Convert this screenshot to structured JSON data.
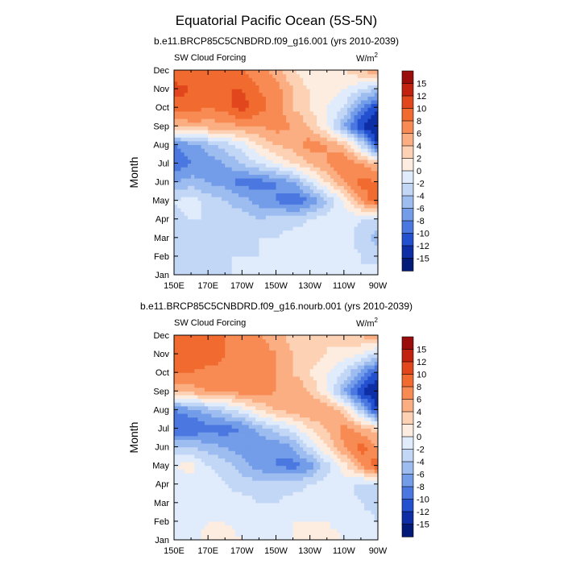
{
  "figure": {
    "title": "Equatorial Pacific Ocean (5S-5N)"
  },
  "chart_data": [
    {
      "type": "heatmap",
      "title": "b.e11.BRCP85C5CNBDRD.f09_g16.001 (yrs 2010-2039)",
      "subtitle_left": "SW Cloud Forcing",
      "units_base": "W/m",
      "units_exp": "2",
      "xlabel": "",
      "ylabel": "Month",
      "x_ticks": [
        "150E",
        "170E",
        "170W",
        "150W",
        "130W",
        "110W",
        "90W"
      ],
      "y_ticks": [
        "Jan",
        "Feb",
        "Mar",
        "Apr",
        "May",
        "Jun",
        "Jul",
        "Aug",
        "Sep",
        "Oct",
        "Nov",
        "Dec"
      ],
      "xlim": [
        150,
        270
      ],
      "ylim": [
        1,
        12
      ],
      "colorbar_labels": [
        "15",
        "12",
        "10",
        "8",
        "6",
        "4",
        "2",
        "0",
        "-2",
        "-4",
        "-6",
        "-8",
        "-10",
        "-12",
        "-15"
      ],
      "colorbar_colors": [
        "#9a0d0b",
        "#c3210f",
        "#e2461d",
        "#f16a2f",
        "#f88b54",
        "#fbae82",
        "#fdd1b4",
        "#fdece0",
        "#e0ecfb",
        "#c2d6f6",
        "#9dbcf0",
        "#739de9",
        "#4b78e0",
        "#2350cf",
        "#0e2ea6",
        "#031a78"
      ],
      "z": [
        [
          -4,
          -3,
          -2,
          -3,
          -1,
          -2,
          -2,
          -1,
          0,
          -1,
          -1,
          -2,
          -1
        ],
        [
          -4,
          -3,
          -3,
          -2,
          -2,
          -2,
          -1,
          -1,
          0,
          0,
          -1,
          -2,
          -3
        ],
        [
          -3,
          -2,
          -3,
          -2,
          -3,
          -2,
          -2,
          -1,
          -1,
          0,
          -1,
          -3,
          -5
        ],
        [
          -3,
          -2,
          -2,
          -3,
          -3,
          -4,
          -3,
          -3,
          -2,
          -1,
          -1,
          -2,
          -3
        ],
        [
          -2,
          -1,
          -3,
          -4,
          -5,
          -7,
          -8,
          -10,
          -8,
          -4,
          0,
          6,
          10
        ],
        [
          -6,
          -5,
          -6,
          -7,
          -9,
          -9,
          -8,
          -6,
          -2,
          2,
          6,
          9,
          8
        ],
        [
          -10,
          -8,
          -7,
          -6,
          -4,
          -2,
          0,
          2,
          4,
          6,
          8,
          6,
          4
        ],
        [
          -8,
          -7,
          -5,
          -3,
          -1,
          2,
          4,
          5,
          7,
          6,
          4,
          -2,
          -12
        ],
        [
          4,
          5,
          5,
          5,
          6,
          6,
          7,
          6,
          4,
          0,
          -6,
          -12,
          -15
        ],
        [
          9,
          9,
          8,
          9,
          11,
          9,
          7,
          4,
          2,
          0,
          -2,
          -8,
          -12
        ],
        [
          11,
          10,
          9,
          10,
          10,
          8,
          7,
          4,
          2,
          1,
          0,
          -2,
          -4
        ],
        [
          8,
          9,
          8,
          9,
          8,
          7,
          5,
          2,
          0,
          1,
          2,
          4,
          6
        ]
      ]
    },
    {
      "type": "heatmap",
      "title": "b.e11.BRCP85C5CNBDRD.f09_g16.nourb.001 (yrs 2010-2039)",
      "subtitle_left": "SW Cloud Forcing",
      "units_base": "W/m",
      "units_exp": "2",
      "xlabel": "",
      "ylabel": "Month",
      "x_ticks": [
        "150E",
        "170E",
        "170W",
        "150W",
        "130W",
        "110W",
        "90W"
      ],
      "y_ticks": [
        "Jan",
        "Feb",
        "Mar",
        "Apr",
        "May",
        "Jun",
        "Jul",
        "Aug",
        "Sep",
        "Oct",
        "Nov",
        "Dec"
      ],
      "xlim": [
        150,
        270
      ],
      "ylim": [
        1,
        12
      ],
      "colorbar_labels": [
        "15",
        "12",
        "10",
        "8",
        "6",
        "4",
        "2",
        "0",
        "-2",
        "-4",
        "-6",
        "-8",
        "-10",
        "-12",
        "-15"
      ],
      "colorbar_colors": [
        "#9a0d0b",
        "#c3210f",
        "#e2461d",
        "#f16a2f",
        "#f88b54",
        "#fbae82",
        "#fdd1b4",
        "#fdece0",
        "#e0ecfb",
        "#c2d6f6",
        "#9dbcf0",
        "#739de9",
        "#4b78e0",
        "#2350cf",
        "#0e2ea6",
        "#031a78"
      ],
      "z": [
        [
          -1,
          -1,
          1,
          1,
          0,
          0,
          -1,
          0,
          1,
          1,
          0,
          -1,
          -1
        ],
        [
          -1,
          -1,
          0,
          0,
          -1,
          -1,
          -1,
          0,
          0,
          0,
          -1,
          -1,
          -2
        ],
        [
          -2,
          -1,
          0,
          -1,
          -1,
          -2,
          -2,
          -1,
          -1,
          0,
          -1,
          -2,
          -3
        ],
        [
          -2,
          -1,
          -1,
          -2,
          -3,
          -3,
          -3,
          -3,
          -2,
          -1,
          -1,
          -3,
          -2
        ],
        [
          0,
          1,
          -2,
          -3,
          -5,
          -7,
          -8,
          -9,
          -7,
          -3,
          1,
          6,
          10
        ],
        [
          -4,
          -4,
          -5,
          -6,
          -7,
          -8,
          -8,
          -6,
          -2,
          2,
          6,
          9,
          6
        ],
        [
          -10,
          -10,
          -9,
          -9,
          -8,
          -5,
          -3,
          -1,
          2,
          4,
          7,
          5,
          3
        ],
        [
          -8,
          -7,
          -5,
          -3,
          -1,
          2,
          4,
          5,
          6,
          6,
          3,
          -4,
          -12
        ],
        [
          4,
          5,
          6,
          6,
          7,
          7,
          6,
          6,
          4,
          0,
          -6,
          -12,
          -15
        ],
        [
          8,
          8,
          7,
          7,
          8,
          8,
          6,
          4,
          2,
          0,
          -2,
          -7,
          -11
        ],
        [
          10,
          9,
          10,
          8,
          8,
          7,
          6,
          4,
          3,
          2,
          1,
          0,
          -3
        ],
        [
          9,
          8,
          8,
          8,
          7,
          6,
          5,
          3,
          2,
          2,
          3,
          4,
          6
        ]
      ]
    }
  ]
}
